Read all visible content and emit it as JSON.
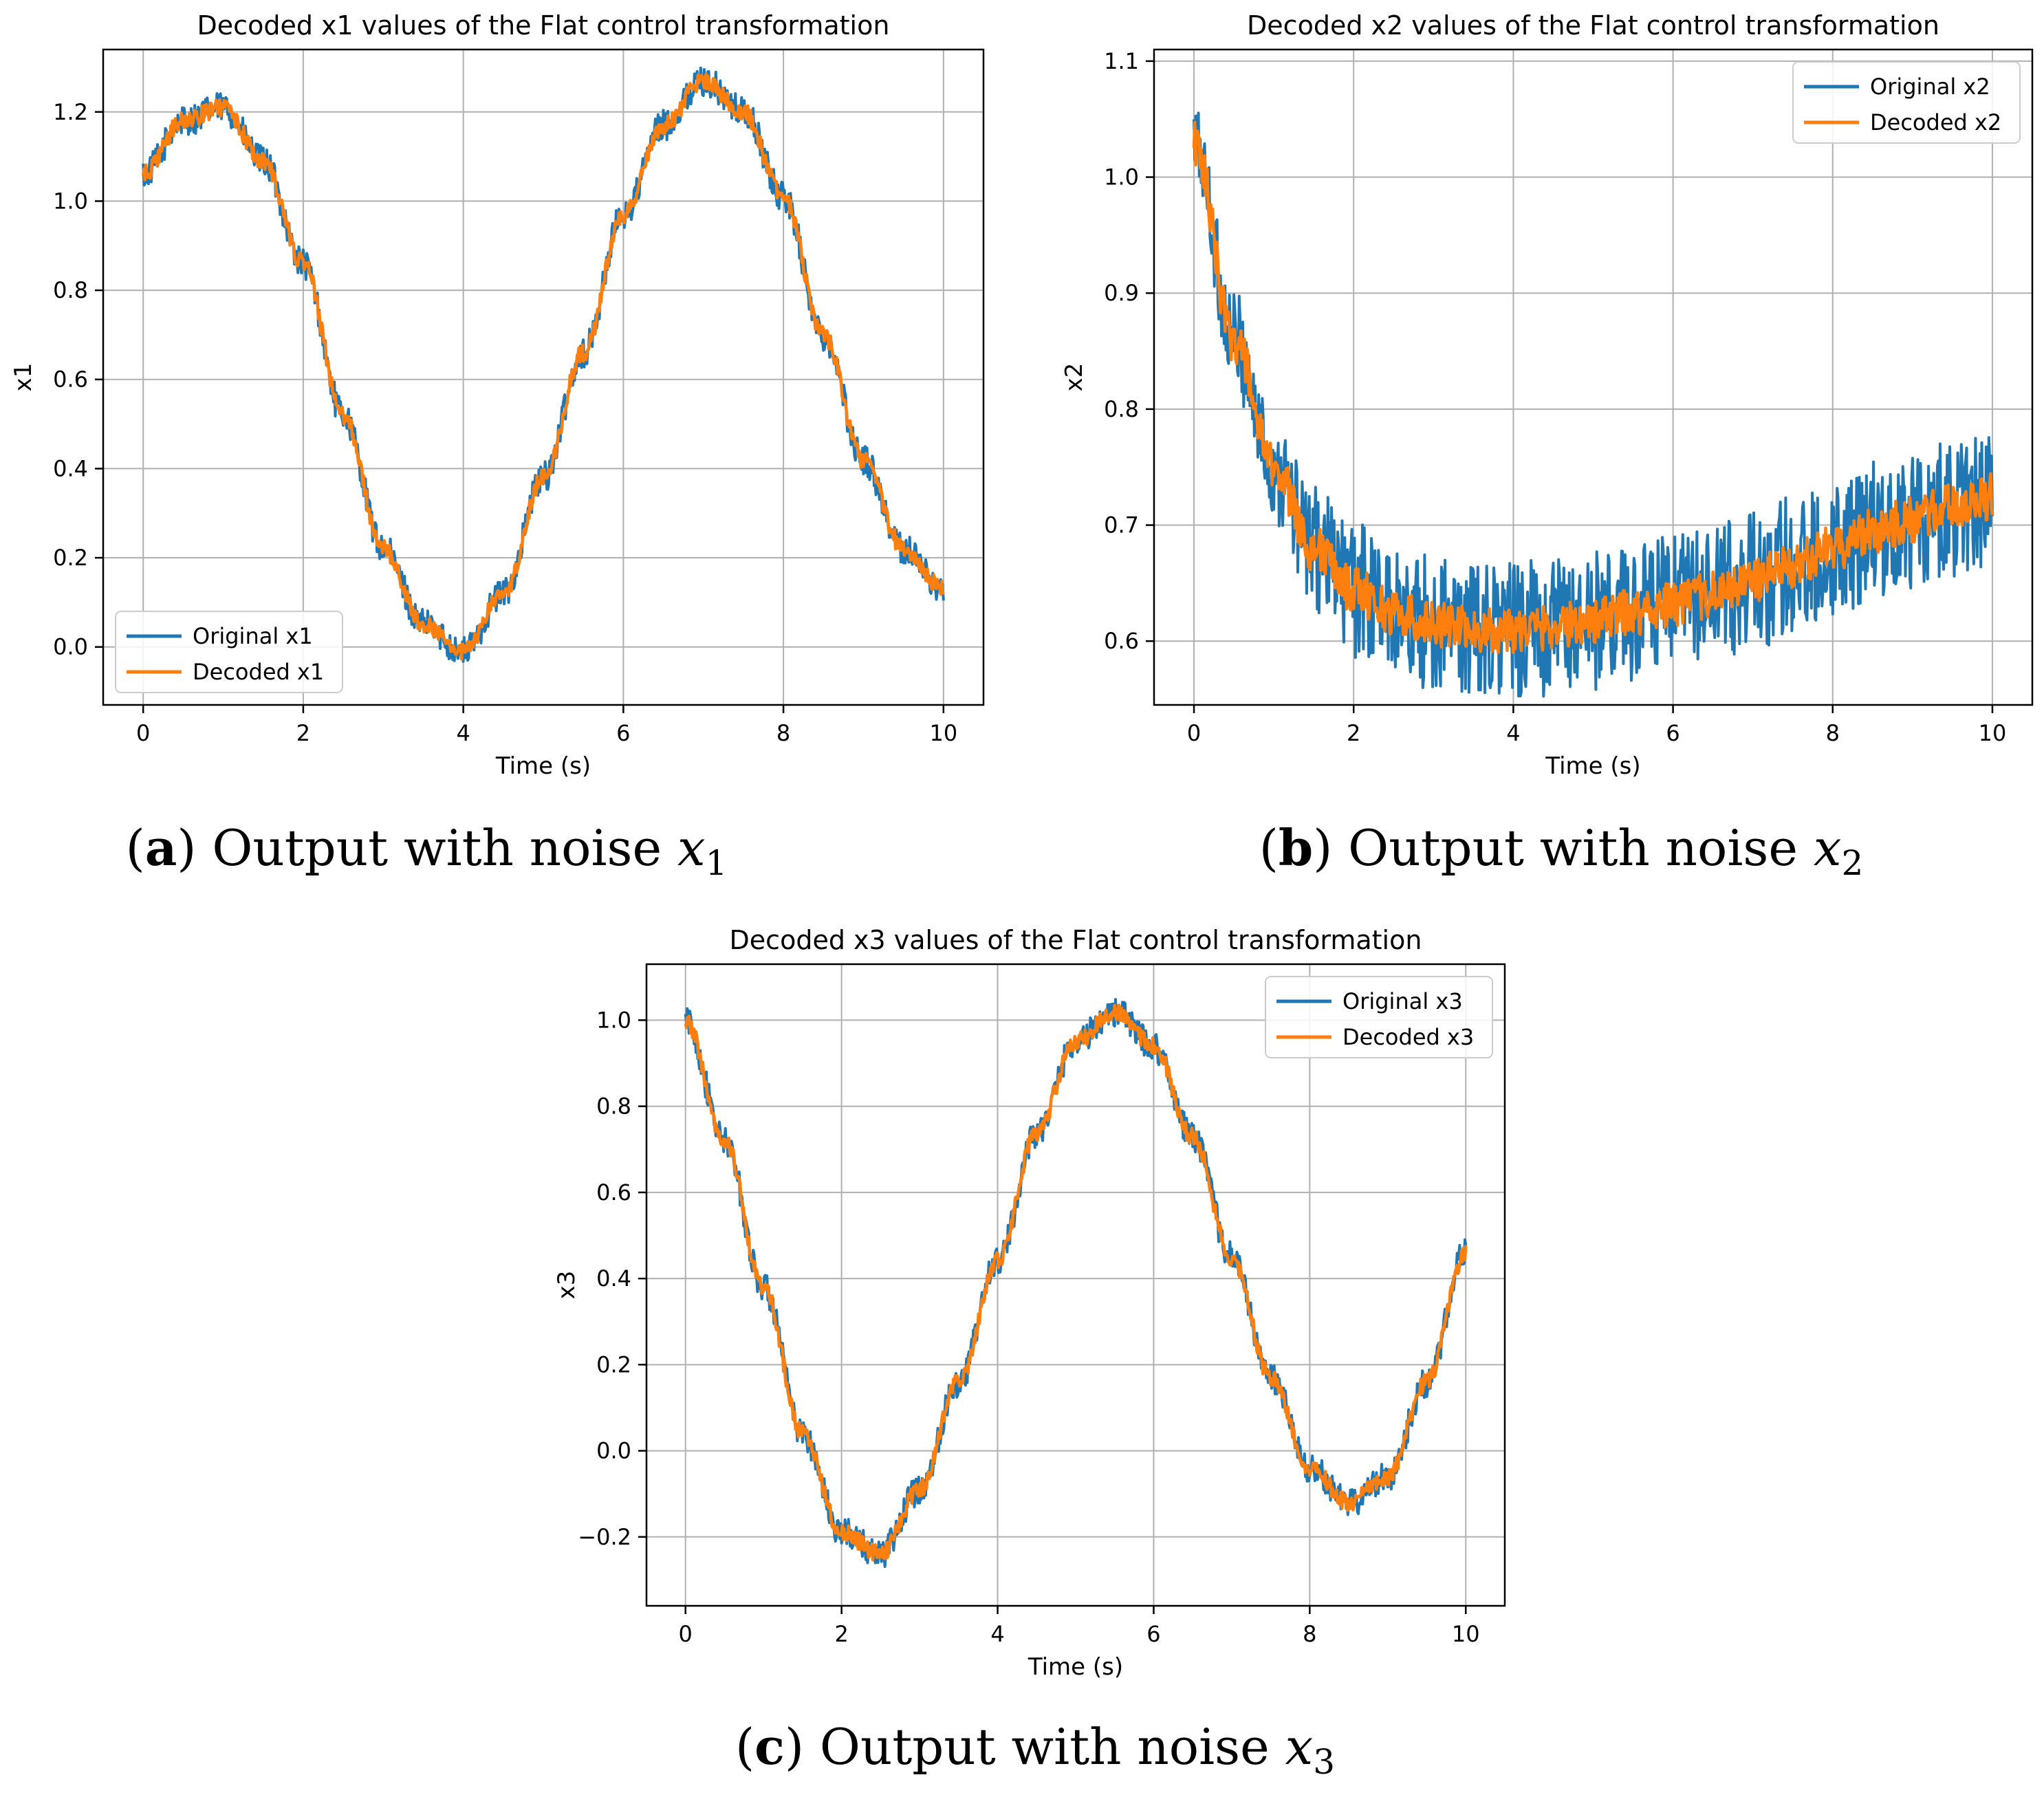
{
  "figure": {
    "captions": [
      {
        "label": "a",
        "text": "Output with noise",
        "var": "x",
        "sub": "1"
      },
      {
        "label": "b",
        "text": "Output with noise",
        "var": "x",
        "sub": "2"
      },
      {
        "label": "c",
        "text": "Output with noise",
        "var": "x",
        "sub": "3"
      }
    ]
  },
  "chart_data": [
    {
      "type": "line",
      "title": "Decoded x1 values of the Flat control transformation",
      "xlabel": "Time (s)",
      "ylabel": "x1",
      "xlim": [
        -0.5,
        10.5
      ],
      "ylim": [
        -0.13,
        1.34
      ],
      "xticks": [
        0,
        2,
        4,
        6,
        8,
        10
      ],
      "xtick_labels": [
        "0",
        "2",
        "4",
        "6",
        "8",
        "10"
      ],
      "yticks": [
        0.0,
        0.2,
        0.4,
        0.6,
        0.8,
        1.0,
        1.2
      ],
      "ytick_labels": [
        "0.0",
        "0.2",
        "0.4",
        "0.6",
        "0.8",
        "1.0",
        "1.2"
      ],
      "grid": true,
      "legend_position": "lower-left",
      "series": [
        {
          "name": "Original x1",
          "color": "#1f77b4",
          "noise": 0.035
        },
        {
          "name": "Decoded x1",
          "color": "#ff7f0e",
          "noise": 0.02
        }
      ],
      "x": [
        0,
        0.5,
        1.0,
        1.5,
        2.0,
        2.5,
        3.0,
        3.5,
        4.0,
        4.5,
        5.0,
        5.5,
        6.0,
        6.5,
        7.0,
        7.5,
        8.0,
        8.5,
        9.0,
        9.5,
        10.0
      ],
      "y": [
        1.06,
        1.18,
        1.21,
        1.09,
        0.86,
        0.52,
        0.22,
        0.05,
        -0.01,
        0.12,
        0.38,
        0.66,
        0.97,
        1.17,
        1.27,
        1.2,
        1.01,
        0.7,
        0.42,
        0.22,
        0.13
      ]
    },
    {
      "type": "line",
      "title": "Decoded x2 values of the Flat control transformation",
      "xlabel": "Time (s)",
      "ylabel": "x2",
      "xlim": [
        -0.5,
        10.5
      ],
      "ylim": [
        0.545,
        1.11
      ],
      "xticks": [
        0,
        2,
        4,
        6,
        8,
        10
      ],
      "xtick_labels": [
        "0",
        "2",
        "4",
        "6",
        "8",
        "10"
      ],
      "yticks": [
        0.6,
        0.7,
        0.8,
        0.9,
        1.0,
        1.1
      ],
      "ytick_labels": [
        "0.6",
        "0.7",
        "0.8",
        "0.9",
        "1.0",
        "1.1"
      ],
      "grid": true,
      "legend_position": "upper-right",
      "series": [
        {
          "name": "Original x2",
          "color": "#1f77b4",
          "noise": 0.06
        },
        {
          "name": "Decoded x2",
          "color": "#ff7f0e",
          "noise": 0.02
        }
      ],
      "x": [
        0,
        0.5,
        1.0,
        1.5,
        2.0,
        2.5,
        3.0,
        3.5,
        4.0,
        4.5,
        5.0,
        5.5,
        6.0,
        6.5,
        7.0,
        7.5,
        8.0,
        8.5,
        9.0,
        9.5,
        10.0
      ],
      "y": [
        1.03,
        0.86,
        0.75,
        0.68,
        0.645,
        0.625,
        0.615,
        0.61,
        0.61,
        0.612,
        0.618,
        0.625,
        0.632,
        0.64,
        0.652,
        0.665,
        0.68,
        0.695,
        0.705,
        0.715,
        0.725
      ]
    },
    {
      "type": "line",
      "title": "Decoded x3 values of the Flat control transformation",
      "xlabel": "Time (s)",
      "ylabel": "x3",
      "xlim": [
        -0.5,
        10.5
      ],
      "ylim": [
        -0.36,
        1.13
      ],
      "xticks": [
        0,
        2,
        4,
        6,
        8,
        10
      ],
      "xtick_labels": [
        "0",
        "2",
        "4",
        "6",
        "8",
        "10"
      ],
      "yticks": [
        -0.2,
        0.0,
        0.2,
        0.4,
        0.6,
        0.8,
        1.0
      ],
      "ytick_labels": [
        "−0.2",
        "0.0",
        "0.2",
        "0.4",
        "0.6",
        "0.8",
        "1.0"
      ],
      "grid": true,
      "legend_position": "upper-right",
      "series": [
        {
          "name": "Original x3",
          "color": "#1f77b4",
          "noise": 0.035
        },
        {
          "name": "Decoded x3",
          "color": "#ff7f0e",
          "noise": 0.02
        }
      ],
      "x": [
        0,
        0.5,
        1.0,
        1.5,
        2.0,
        2.5,
        3.0,
        3.5,
        4.0,
        4.5,
        5.0,
        5.5,
        6.0,
        6.5,
        7.0,
        7.5,
        8.0,
        8.5,
        9.0,
        9.5,
        10.0
      ],
      "y": [
        1.0,
        0.72,
        0.38,
        0.04,
        -0.19,
        -0.24,
        -0.09,
        0.16,
        0.44,
        0.74,
        0.95,
        1.02,
        0.94,
        0.73,
        0.45,
        0.17,
        -0.04,
        -0.12,
        -0.06,
        0.16,
        0.46
      ]
    }
  ]
}
